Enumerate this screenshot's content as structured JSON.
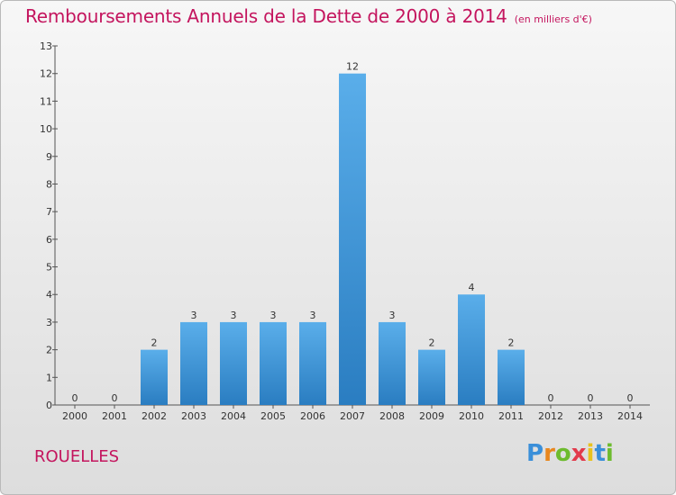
{
  "title": "Remboursements Annuels de la Dette de 2000 à 2014",
  "subtitle": "(en milliers d'€)",
  "location": "ROUELLES",
  "logo": {
    "text": "Proxiti",
    "letter_colors": [
      "#3a8fd9",
      "#e8871e",
      "#6dbb2e",
      "#e23a4b",
      "#e8c21e",
      "#3a8fd9",
      "#6dbb2e"
    ]
  },
  "colors": {
    "bar_light": "#5aaeea",
    "bar_dark": "#2a7dc1",
    "title": "#c4155e",
    "text": "#333333"
  },
  "chart_data": {
    "type": "bar",
    "title": "Remboursements Annuels de la Dette de 2000 à 2014",
    "subtitle": "(en milliers d'€)",
    "xlabel": "",
    "ylabel": "",
    "categories": [
      "2000",
      "2001",
      "2002",
      "2003",
      "2004",
      "2005",
      "2006",
      "2007",
      "2008",
      "2009",
      "2010",
      "2011",
      "2012",
      "2013",
      "2014"
    ],
    "values": [
      0,
      0,
      2,
      3,
      3,
      3,
      3,
      12,
      3,
      2,
      4,
      2,
      0,
      0,
      0
    ],
    "data_labels": [
      "0",
      "0",
      "2",
      "3",
      "3",
      "3",
      "3",
      "12",
      "3",
      "2",
      "4",
      "2",
      "0",
      "0",
      "0"
    ],
    "ylim": [
      0,
      13
    ],
    "yticks": [
      0,
      1,
      2,
      3,
      4,
      5,
      6,
      7,
      8,
      9,
      10,
      11,
      12,
      13
    ],
    "ytick_labels": [
      "0",
      "1",
      "2",
      "3",
      "4",
      "5",
      "6",
      "7",
      "8",
      "9",
      "10",
      "11",
      "12",
      "13"
    ],
    "grid": false,
    "legend": "none"
  }
}
